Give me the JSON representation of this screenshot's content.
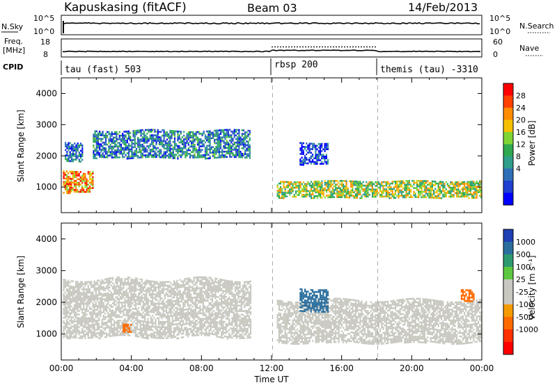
{
  "header": {
    "station": "Kapuskasing (fitACF)",
    "beam": "Beam 03",
    "date": "14/Feb/2013"
  },
  "noise_panel": {
    "left_label": "N.Sky",
    "left_ticks": [
      "10^5",
      "10^0"
    ],
    "right_ticks": [
      "10^5",
      "10^0"
    ],
    "right_label": "N.Search"
  },
  "freq_panel": {
    "left_label": "Freq.",
    "left_unit": "[MHz]",
    "left_ticks": [
      "18",
      "8"
    ],
    "right_ticks": [
      "60",
      "0"
    ],
    "right_label": "Nave"
  },
  "cpid": {
    "label": "CPID",
    "segments": [
      {
        "name": "tau (fast) 503",
        "start_hour": 0
      },
      {
        "name": "rbsp 200",
        "start_hour": 12
      },
      {
        "name": "themis (tau) -3310",
        "start_hour": 18
      }
    ]
  },
  "power_colorbar": {
    "label": "Power [dB]",
    "ticks": [
      "28",
      "24",
      "20",
      "16",
      "12",
      "8",
      "4"
    ],
    "colors": [
      "#ff0000",
      "#ff4000",
      "#ff8c00",
      "#f5c000",
      "#7fd633",
      "#2fa84f",
      "#2f9e8a",
      "#2f6fb8",
      "#2040d0",
      "#0000ff"
    ]
  },
  "velocity_colorbar": {
    "label": "Velocity [m s⁻¹]",
    "ticks": [
      "1000",
      "500",
      "100",
      "25",
      "-25",
      "-100",
      "-500",
      "-1000"
    ],
    "colors": [
      "#1f3fb4",
      "#2a6e9e",
      "#2f9a70",
      "#5cc840",
      "#c8c8c0",
      "#c8c8c0",
      "#f59a00",
      "#ff6a00",
      "#ff3000",
      "#ff0000"
    ]
  },
  "axes": {
    "ylabel": "Slant Range [km]",
    "xlabel": "Time UT",
    "yticks": [
      "4000",
      "3000",
      "2000",
      "1000"
    ],
    "xticks": [
      "00:00",
      "04:00",
      "08:00",
      "12:00",
      "16:00",
      "20:00",
      "00:00"
    ]
  },
  "chart_data": {
    "type": "heatmap",
    "x_range_hours": [
      0,
      24
    ],
    "y_range_km": [
      180,
      4500
    ],
    "mode_change_hours": [
      12,
      18
    ],
    "ground_scatter_color": "#c8c8c0",
    "power_echo_regions": [
      {
        "t0": 0.1,
        "t1": 1.8,
        "r0": 800,
        "r1": 1600,
        "level_db": 24
      },
      {
        "t0": 0.2,
        "t1": 1.2,
        "r0": 1800,
        "r1": 2500,
        "level_db": 8
      },
      {
        "t0": 1.8,
        "t1": 10.8,
        "r0": 1900,
        "r1": 2900,
        "level_db": 10
      },
      {
        "t0": 12.3,
        "t1": 24.0,
        "r0": 650,
        "r1": 1250,
        "level_db": 18
      },
      {
        "t0": 13.6,
        "t1": 15.2,
        "r0": 1700,
        "r1": 2500,
        "level_db": 6
      }
    ],
    "velocity_echo_regions": [
      {
        "t0": 0.1,
        "t1": 10.8,
        "r0": 800,
        "r1": 2900,
        "velocity": 0
      },
      {
        "t0": 12.3,
        "t1": 24.0,
        "r0": 650,
        "r1": 2200,
        "velocity": 0
      },
      {
        "t0": 13.6,
        "t1": 15.2,
        "r0": 1700,
        "r1": 2500,
        "velocity": 500
      },
      {
        "t0": 3.5,
        "t1": 4.0,
        "r0": 1050,
        "r1": 1350,
        "velocity": -500
      },
      {
        "t0": 22.8,
        "t1": 23.5,
        "r0": 2000,
        "r1": 2450,
        "velocity": -500
      }
    ]
  }
}
